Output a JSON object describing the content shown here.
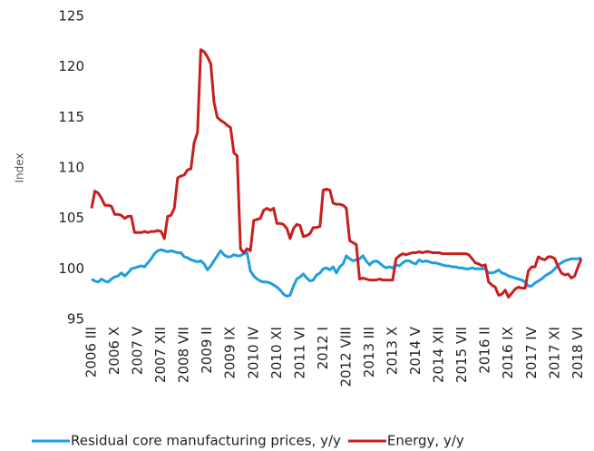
{
  "chart_data": {
    "type": "line",
    "y_label": "Index",
    "categories": [
      "2006 III",
      null,
      null,
      null,
      null,
      null,
      null,
      "2006 X",
      null,
      null,
      null,
      null,
      null,
      null,
      "2007 V",
      null,
      null,
      null,
      null,
      null,
      null,
      "2007 XII",
      null,
      null,
      null,
      null,
      null,
      null,
      "2008 VII",
      null,
      null,
      null,
      null,
      null,
      null,
      "2009 II",
      null,
      null,
      null,
      null,
      null,
      null,
      "2009 IX",
      null,
      null,
      null,
      null,
      null,
      null,
      "2010 IV",
      null,
      null,
      null,
      null,
      null,
      null,
      "2010 XI",
      null,
      null,
      null,
      null,
      null,
      null,
      "2011 VI",
      null,
      null,
      null,
      null,
      null,
      null,
      "2012 I",
      null,
      null,
      null,
      null,
      null,
      null,
      "2012 VIII",
      null,
      null,
      null,
      null,
      null,
      null,
      "2013 III",
      null,
      null,
      null,
      null,
      null,
      null,
      "2013 X",
      null,
      null,
      null,
      null,
      null,
      null,
      "2014 V",
      null,
      null,
      null,
      null,
      null,
      null,
      "2014 XII",
      null,
      null,
      null,
      null,
      null,
      null,
      "2015 VII",
      null,
      null,
      null,
      null,
      null,
      null,
      "2016 II",
      null,
      null,
      null,
      null,
      null,
      null,
      "2016 IX",
      null,
      null,
      null,
      null,
      null,
      null,
      "2017 IV",
      null,
      null,
      null,
      null,
      null,
      null,
      "2017 XI",
      null,
      null,
      null,
      null,
      null,
      null,
      "2018 VI",
      null
    ],
    "series": [
      {
        "name": "Residual core manufacturing prices, y/y",
        "color": "#1e9de0",
        "values": [
          99,
          98.8,
          98.7,
          99,
          98.8,
          98.7,
          99,
          99.2,
          99.3,
          99.6,
          99.3,
          99.6,
          100,
          100.1,
          100.2,
          100.3,
          100.2,
          100.6,
          101,
          101.5,
          101.8,
          101.9,
          101.8,
          101.7,
          101.8,
          101.7,
          101.6,
          101.6,
          101.2,
          101.1,
          100.9,
          100.8,
          100.7,
          100.8,
          100.5,
          99.9,
          100.3,
          100.8,
          101.3,
          101.8,
          101.4,
          101.2,
          101.2,
          101.4,
          101.3,
          101.3,
          101.5,
          101.6,
          99.8,
          99.3,
          99,
          98.8,
          98.7,
          98.7,
          98.6,
          98.4,
          98.2,
          97.9,
          97.5,
          97.3,
          97.4,
          98.3,
          99,
          99.2,
          99.5,
          99.1,
          98.8,
          98.9,
          99.4,
          99.6,
          100,
          100.1,
          99.9,
          100.2,
          99.6,
          100.2,
          100.5,
          101.3,
          101,
          100.8,
          100.9,
          101,
          101.3,
          100.8,
          100.4,
          100.7,
          100.8,
          100.6,
          100.3,
          100.1,
          100.2,
          100.1,
          100.4,
          100.3,
          100.6,
          100.8,
          100.8,
          100.6,
          100.5,
          100.9,
          100.7,
          100.8,
          100.7,
          100.6,
          100.6,
          100.5,
          100.4,
          100.3,
          100.3,
          100.2,
          100.2,
          100.1,
          100.1,
          100,
          100,
          100.1,
          100,
          100,
          100,
          100,
          99.6,
          99.6,
          99.7,
          99.9,
          99.6,
          99.5,
          99.3,
          99.2,
          99.1,
          99,
          98.9,
          98.7,
          98.3,
          98.3,
          98.6,
          98.8,
          99,
          99.3,
          99.5,
          99.7,
          100,
          100.4,
          100.6,
          100.8,
          100.9,
          101,
          101,
          101,
          101.1
        ]
      },
      {
        "name": "Energy, y/y",
        "color": "#c81e1e",
        "values": [
          106,
          107.7,
          107.5,
          107,
          106.3,
          106.3,
          106.2,
          105.4,
          105.4,
          105.3,
          105,
          105.2,
          105.2,
          103.6,
          103.6,
          103.6,
          103.7,
          103.6,
          103.7,
          103.7,
          103.8,
          103.7,
          103,
          105.2,
          105.3,
          106,
          109,
          109.2,
          109.3,
          109.8,
          109.9,
          112.5,
          113.5,
          121.7,
          121.5,
          121,
          120.3,
          116.5,
          115,
          114.7,
          114.5,
          114.2,
          114,
          111.5,
          111.2,
          102,
          101.6,
          102,
          101.8,
          104.8,
          104.9,
          105,
          105.8,
          106,
          105.8,
          106,
          104.5,
          104.5,
          104.4,
          104,
          103,
          104,
          104.4,
          104.3,
          103.2,
          103.3,
          103.5,
          104.1,
          104.1,
          104.2,
          107.8,
          107.9,
          107.8,
          106.5,
          106.4,
          106.4,
          106.3,
          106,
          102.8,
          102.6,
          102.4,
          99,
          99.1,
          99,
          98.9,
          98.9,
          98.9,
          99,
          98.9,
          98.9,
          98.9,
          98.9,
          101,
          101.3,
          101.5,
          101.4,
          101.5,
          101.6,
          101.6,
          101.7,
          101.6,
          101.7,
          101.7,
          101.6,
          101.6,
          101.6,
          101.5,
          101.5,
          101.5,
          101.5,
          101.5,
          101.5,
          101.5,
          101.5,
          101.4,
          101,
          100.6,
          100.5,
          100.3,
          100.4,
          98.7,
          98.4,
          98.2,
          97.4,
          97.5,
          97.9,
          97.2,
          97.6,
          98,
          98.2,
          98.1,
          98.1,
          99.8,
          100.2,
          100.2,
          101.2,
          101,
          100.9,
          101.2,
          101.2,
          101,
          100.2,
          99.6,
          99.4,
          99.5,
          99.1,
          99.3,
          100.2,
          101
        ]
      }
    ],
    "ylim": [
      95,
      125
    ],
    "yticks": [
      95,
      100,
      105,
      110,
      115,
      120,
      125
    ],
    "grid": false,
    "legend": "bottom"
  }
}
